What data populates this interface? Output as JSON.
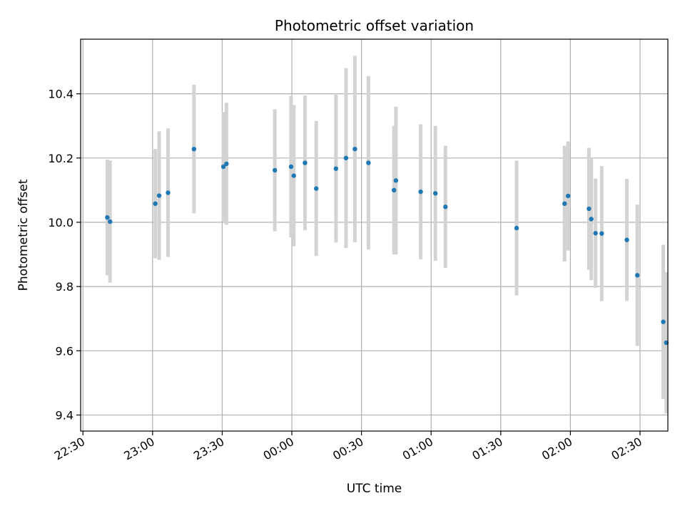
{
  "chart_data": {
    "type": "scatter",
    "title": "Photometric offset variation",
    "xlabel": "UTC time",
    "ylabel": "Photometric offset",
    "x_is_time": true,
    "xlim": [
      "22:29",
      "02:42"
    ],
    "ylim": [
      9.35,
      10.57
    ],
    "xticks": [
      "22:30",
      "23:00",
      "23:30",
      "00:00",
      "00:30",
      "01:00",
      "01:30",
      "02:00",
      "02:30"
    ],
    "yticks": [
      9.4,
      9.6,
      9.8,
      10.0,
      10.2,
      10.4
    ],
    "ytick_labels": [
      "9.4",
      "9.6",
      "9.8",
      "10.0",
      "10.2",
      "10.4"
    ],
    "grid": true,
    "marker_color": "#1f77b4",
    "errorbar_color": "#d3d3d3",
    "points": [
      {
        "t": "22:40:30",
        "y": 10.015,
        "err": 0.18
      },
      {
        "t": "22:41:40",
        "y": 10.002,
        "err": 0.19
      },
      {
        "t": "23:01:10",
        "y": 10.058,
        "err": 0.17
      },
      {
        "t": "23:02:50",
        "y": 10.083,
        "err": 0.2
      },
      {
        "t": "23:06:40",
        "y": 10.092,
        "err": 0.2
      },
      {
        "t": "23:17:50",
        "y": 10.228,
        "err": 0.2
      },
      {
        "t": "23:30:30",
        "y": 10.173,
        "err": 0.17
      },
      {
        "t": "23:31:50",
        "y": 10.182,
        "err": 0.19
      },
      {
        "t": "23:52:40",
        "y": 10.162,
        "err": 0.19
      },
      {
        "t": "23:59:40",
        "y": 10.173,
        "err": 0.22
      },
      {
        "t": "24:00:50",
        "y": 10.145,
        "err": 0.22
      },
      {
        "t": "24:05:40",
        "y": 10.185,
        "err": 0.21
      },
      {
        "t": "24:10:30",
        "y": 10.105,
        "err": 0.21
      },
      {
        "t": "24:19:00",
        "y": 10.167,
        "err": 0.23
      },
      {
        "t": "24:23:20",
        "y": 10.2,
        "err": 0.28
      },
      {
        "t": "24:27:10",
        "y": 10.228,
        "err": 0.29
      },
      {
        "t": "24:33:00",
        "y": 10.185,
        "err": 0.27
      },
      {
        "t": "24:44:00",
        "y": 10.1,
        "err": 0.2
      },
      {
        "t": "24:44:50",
        "y": 10.13,
        "err": 0.23
      },
      {
        "t": "24:55:30",
        "y": 10.095,
        "err": 0.21
      },
      {
        "t": "25:01:50",
        "y": 10.09,
        "err": 0.21
      },
      {
        "t": "25:06:10",
        "y": 10.048,
        "err": 0.19
      },
      {
        "t": "25:36:50",
        "y": 9.982,
        "err": 0.21
      },
      {
        "t": "25:57:30",
        "y": 10.058,
        "err": 0.18
      },
      {
        "t": "25:59:00",
        "y": 10.082,
        "err": 0.17
      },
      {
        "t": "26:08:00",
        "y": 10.042,
        "err": 0.19
      },
      {
        "t": "26:09:00",
        "y": 10.01,
        "err": 0.19
      },
      {
        "t": "26:10:50",
        "y": 9.966,
        "err": 0.17
      },
      {
        "t": "26:13:30",
        "y": 9.965,
        "err": 0.21
      },
      {
        "t": "26:24:20",
        "y": 9.945,
        "err": 0.19
      },
      {
        "t": "26:28:50",
        "y": 9.835,
        "err": 0.22
      },
      {
        "t": "26:40:00",
        "y": 9.69,
        "err": 0.24
      },
      {
        "t": "26:41:20",
        "y": 9.625,
        "err": 0.22
      }
    ]
  }
}
